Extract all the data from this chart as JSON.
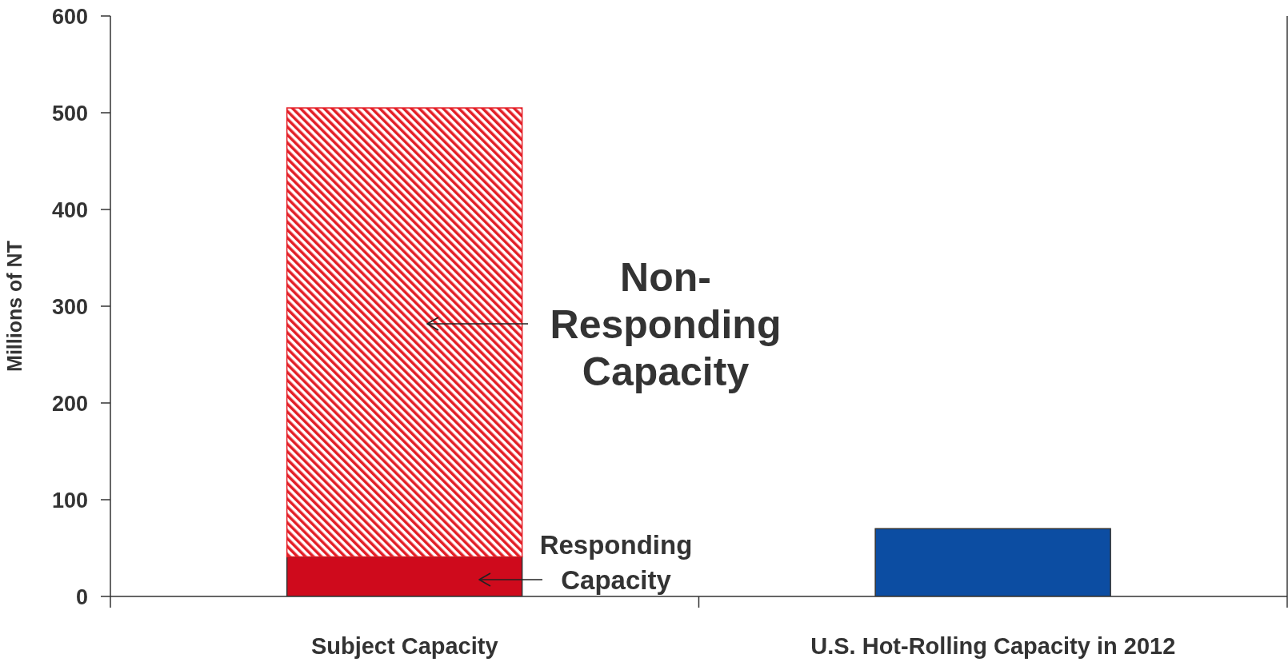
{
  "chart_data": {
    "type": "bar",
    "stacked": true,
    "ylabel": "Millions of NT",
    "categories": [
      "Subject Capacity",
      "U.S. Hot-Rolling Capacity in 2012"
    ],
    "series": [
      {
        "color": "#cf0a1c",
        "values": [
          41,
          null
        ]
      },
      {
        "color": "#e41e26",
        "values": [
          464,
          null
        ]
      },
      {
        "color": "#0c4da2",
        "values": [
          null,
          70
        ]
      }
    ],
    "ylim": [
      0,
      600
    ],
    "yticks": [
      0,
      100,
      200,
      300,
      400,
      500,
      600
    ],
    "annotations": [
      "Non-Responding Capacity",
      "Responding Capacity"
    ]
  }
}
